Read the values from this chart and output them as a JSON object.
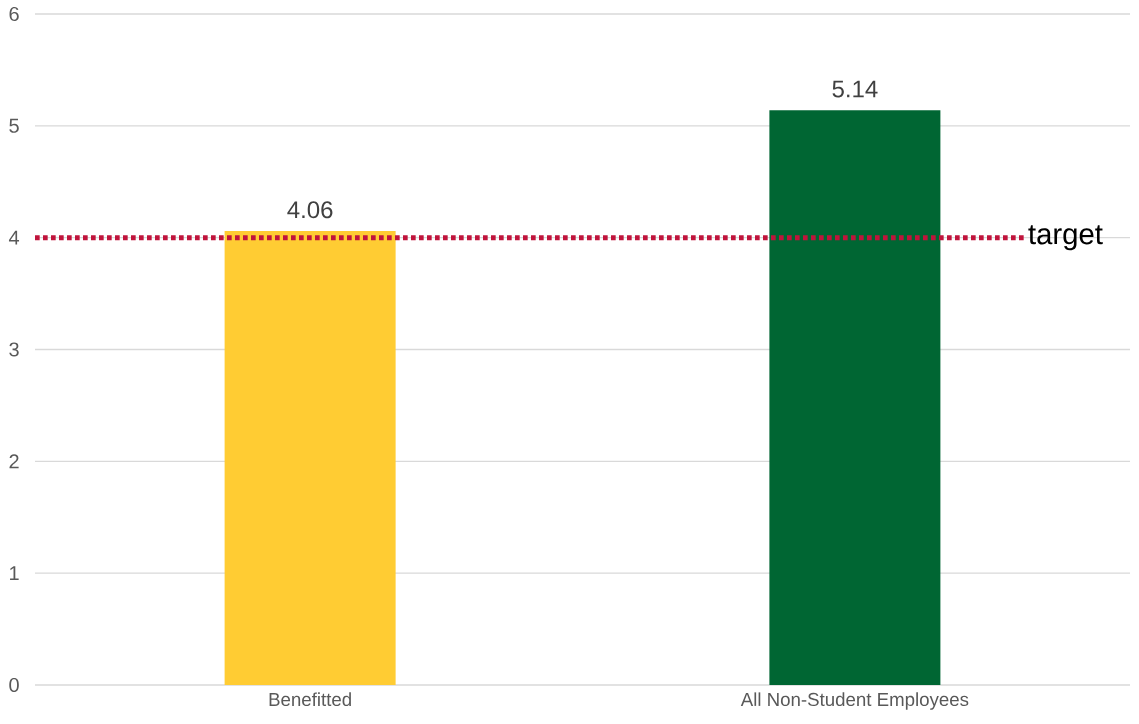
{
  "chart_data": {
    "type": "bar",
    "categories": [
      "Benefitted",
      "All Non-Student Employees"
    ],
    "values": [
      4.06,
      5.14
    ],
    "colors": [
      "#ffcc33",
      "#006633"
    ],
    "ylim": [
      0,
      6
    ],
    "yticks": [
      0,
      1,
      2,
      3,
      4,
      5,
      6
    ],
    "grid": "y",
    "data_labels": true,
    "ref_lines": [
      {
        "axis": "y",
        "value": 4,
        "label": "target",
        "color": "#c0143c",
        "line_style": "dotted"
      }
    ]
  }
}
